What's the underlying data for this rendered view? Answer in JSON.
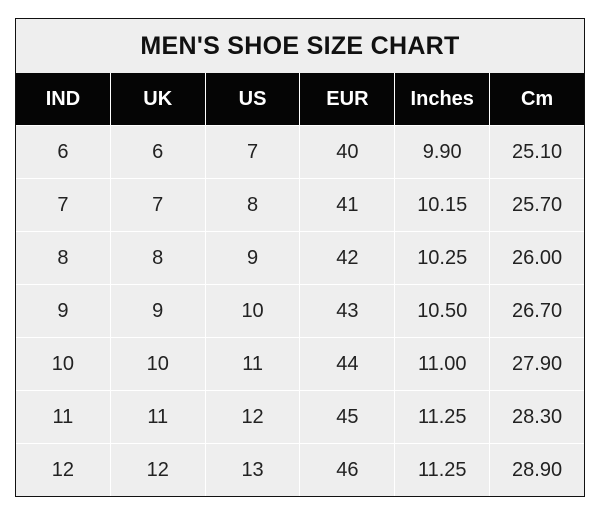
{
  "chart_data": {
    "type": "table",
    "title": "MEN'S SHOE SIZE CHART",
    "columns": [
      "IND",
      "UK",
      "US",
      "EUR",
      "Inches",
      "Cm"
    ],
    "rows": [
      [
        "6",
        "6",
        "7",
        "40",
        "9.90",
        "25.10"
      ],
      [
        "7",
        "7",
        "8",
        "41",
        "10.15",
        "25.70"
      ],
      [
        "8",
        "8",
        "9",
        "42",
        "10.25",
        "26.00"
      ],
      [
        "9",
        "9",
        "10",
        "43",
        "10.50",
        "26.70"
      ],
      [
        "10",
        "10",
        "11",
        "44",
        "11.00",
        "27.90"
      ],
      [
        "11",
        "11",
        "12",
        "45",
        "11.25",
        "28.30"
      ],
      [
        "12",
        "12",
        "13",
        "46",
        "11.25",
        "28.90"
      ]
    ],
    "colors": {
      "header_bg": "#050505",
      "header_text": "#ffffff",
      "cell_bg": "#eeeeee",
      "grid": "#ffffff"
    }
  }
}
